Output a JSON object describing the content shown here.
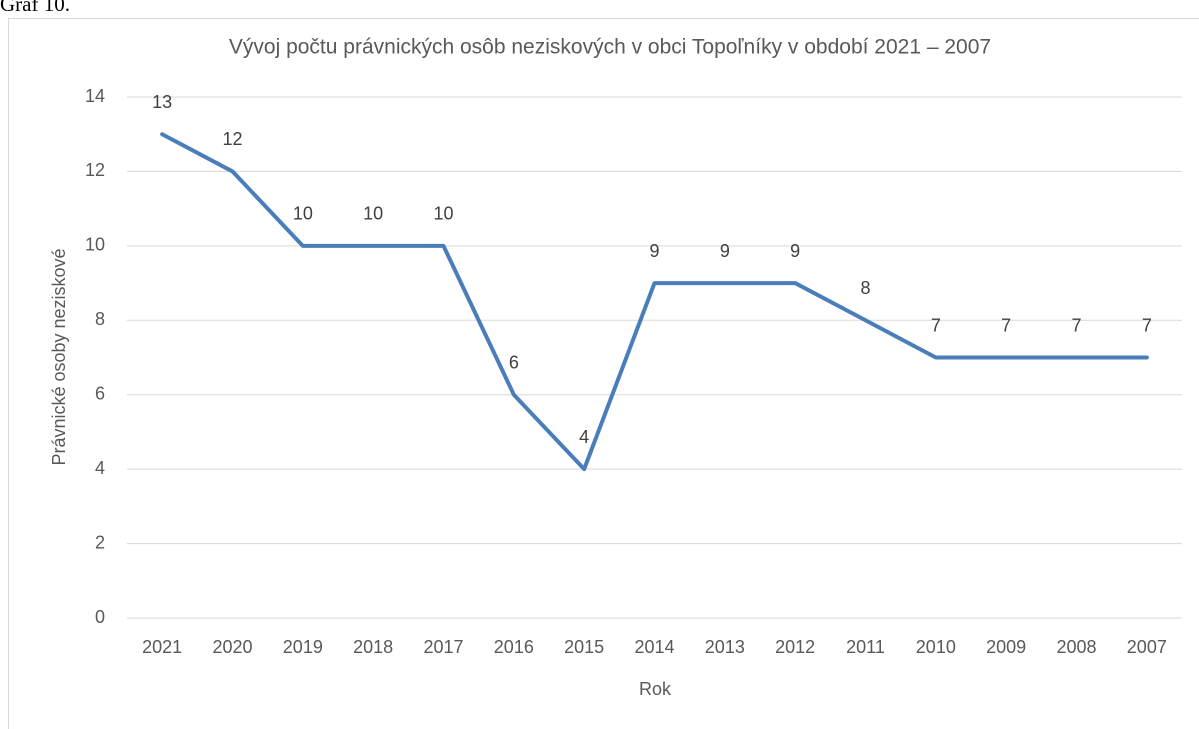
{
  "caption": "Graf 10.",
  "chart_data": {
    "type": "line",
    "title": "Vývoj počtu právnických osôb neziskových v obci Topoľníky v období 2021 – 2007",
    "x_label": "Rok",
    "y_label": "Právnické osoby neziskové",
    "categories": [
      "2021",
      "2020",
      "2019",
      "2018",
      "2017",
      "2016",
      "2015",
      "2014",
      "2013",
      "2012",
      "2011",
      "2010",
      "2009",
      "2008",
      "2007"
    ],
    "values": [
      13,
      12,
      10,
      10,
      10,
      6,
      4,
      9,
      9,
      9,
      8,
      7,
      7,
      7,
      7
    ],
    "color": "#4a7ebb",
    "ylim": [
      0,
      14
    ],
    "yticks": [
      0,
      2,
      4,
      6,
      8,
      10,
      12,
      14
    ],
    "grid": true
  }
}
